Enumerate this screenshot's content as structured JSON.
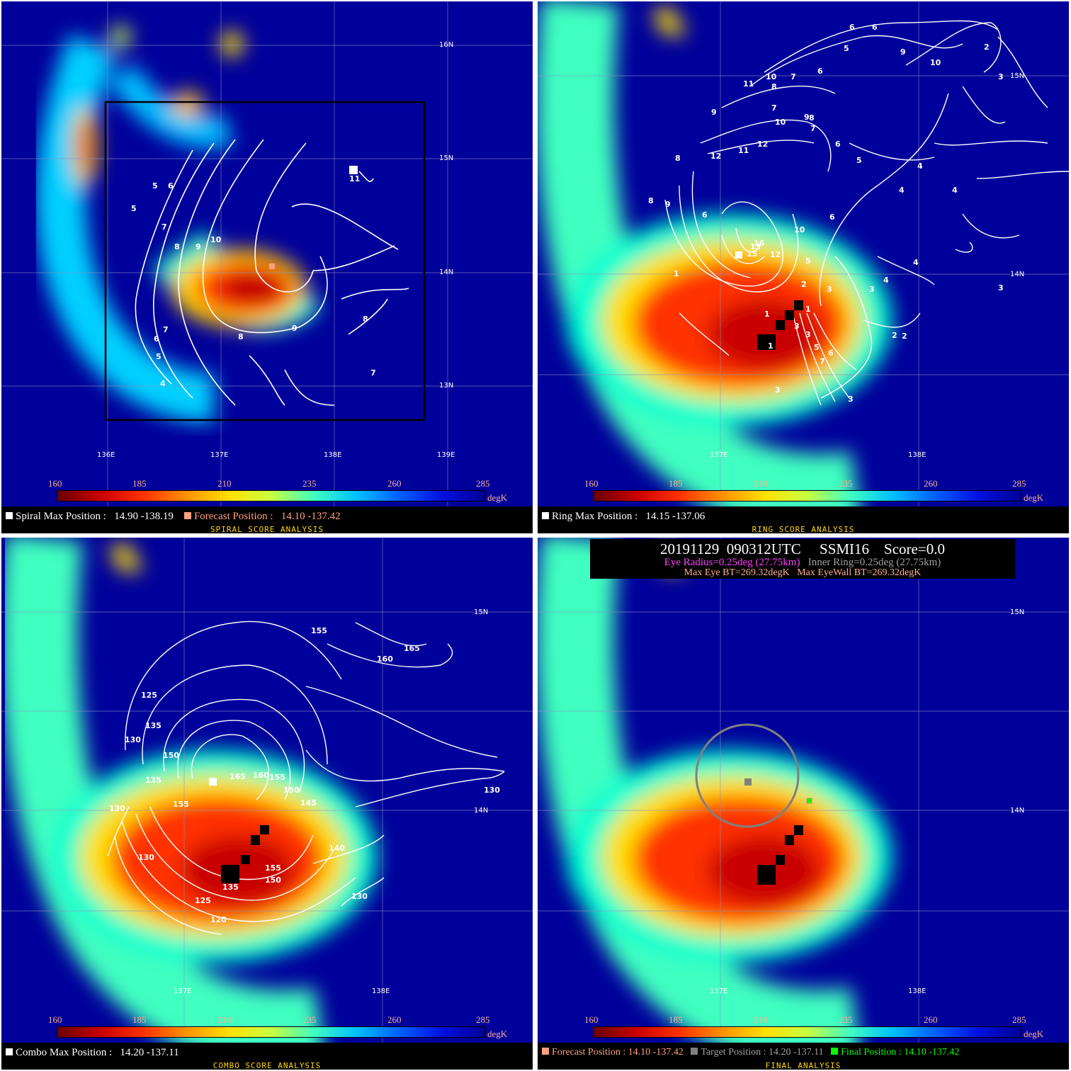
{
  "colorbar": {
    "ticks": [
      "160",
      "185",
      "210",
      "235",
      "260",
      "285"
    ],
    "unit": "degK"
  },
  "panels": {
    "spiral": {
      "title": "SPIRAL SCORE ANALYSIS",
      "lat_labels": [
        "16N",
        "15N",
        "14N",
        "13N"
      ],
      "lon_labels": [
        "136E",
        "137E",
        "138E",
        "139E"
      ],
      "max_label": "Spiral Max Position :",
      "max_value": "14.90 -138.19",
      "forecast_label": "Forecast Position :",
      "forecast_value": "14.10 -137.42",
      "contour_labels": [
        "5",
        "6",
        "5",
        "7",
        "8",
        "9",
        "10",
        "11",
        "7",
        "6",
        "5",
        "4",
        "8",
        "9",
        "8",
        "7"
      ]
    },
    "ring": {
      "title": "RING SCORE ANALYSIS",
      "lat_labels": [
        "15N",
        "14N"
      ],
      "lon_labels": [
        "137E",
        "138E"
      ],
      "max_label": "Ring Max Position :",
      "max_value": "14.15 -137.06",
      "contour_labels": [
        "6",
        "6",
        "5",
        "9",
        "10",
        "2",
        "3",
        "10",
        "7",
        "6",
        "11",
        "8",
        "7",
        "9",
        "10",
        "8",
        "7",
        "6",
        "5",
        "12",
        "11",
        "12",
        "9",
        "8",
        "8",
        "9",
        "6",
        "4",
        "4",
        "4",
        "6",
        "10",
        "3",
        "16",
        "13",
        "15",
        "12",
        "5",
        "1",
        "3",
        "4",
        "4",
        "2",
        "1",
        "3",
        "1",
        "1",
        "2",
        "3",
        "3",
        "5",
        "7",
        "6",
        "3",
        "3",
        "2"
      ]
    },
    "combo": {
      "title": "COMBO SCORE ANALYSIS",
      "lat_labels": [
        "15N",
        "14N"
      ],
      "lon_labels": [
        "137E",
        "138E"
      ],
      "max_label": "Combo Max Position :",
      "max_value": "14.20 -137.11",
      "contour_labels": [
        "155",
        "165",
        "160",
        "125",
        "135",
        "130",
        "150",
        "165",
        "160",
        "155",
        "135",
        "130",
        "155",
        "150",
        "145",
        "130",
        "140",
        "155",
        "150",
        "135",
        "125",
        "120",
        "130",
        "130"
      ]
    },
    "final": {
      "title": "FINAL ANALYSIS",
      "lat_labels": [
        "15N",
        "14N"
      ],
      "lon_labels": [
        "137E",
        "138E"
      ],
      "header_line1": "20191129  090312UTC     SSMI16    Score=0.0",
      "eye_radius": "Eye Radius=0.25deg (27.75km)",
      "inner_ring": "Inner Ring=0.25deg (27.75km)",
      "max_eye_bt": "Max Eye BT=269.32degK",
      "max_eyewall_bt": "Max EyeWall BT=269.32degK",
      "forecast_label": "Forecast Position : 14.10 -137.42",
      "target_label": "Target Position : 14.20 -137.11",
      "final_label": "Final Position : 14.10 -137.42"
    }
  },
  "colors": {
    "forecast": "#ffa080",
    "target": "#808080",
    "final": "#00ff00",
    "eye": "#ff40ff",
    "inner": "#a0a0a0"
  }
}
